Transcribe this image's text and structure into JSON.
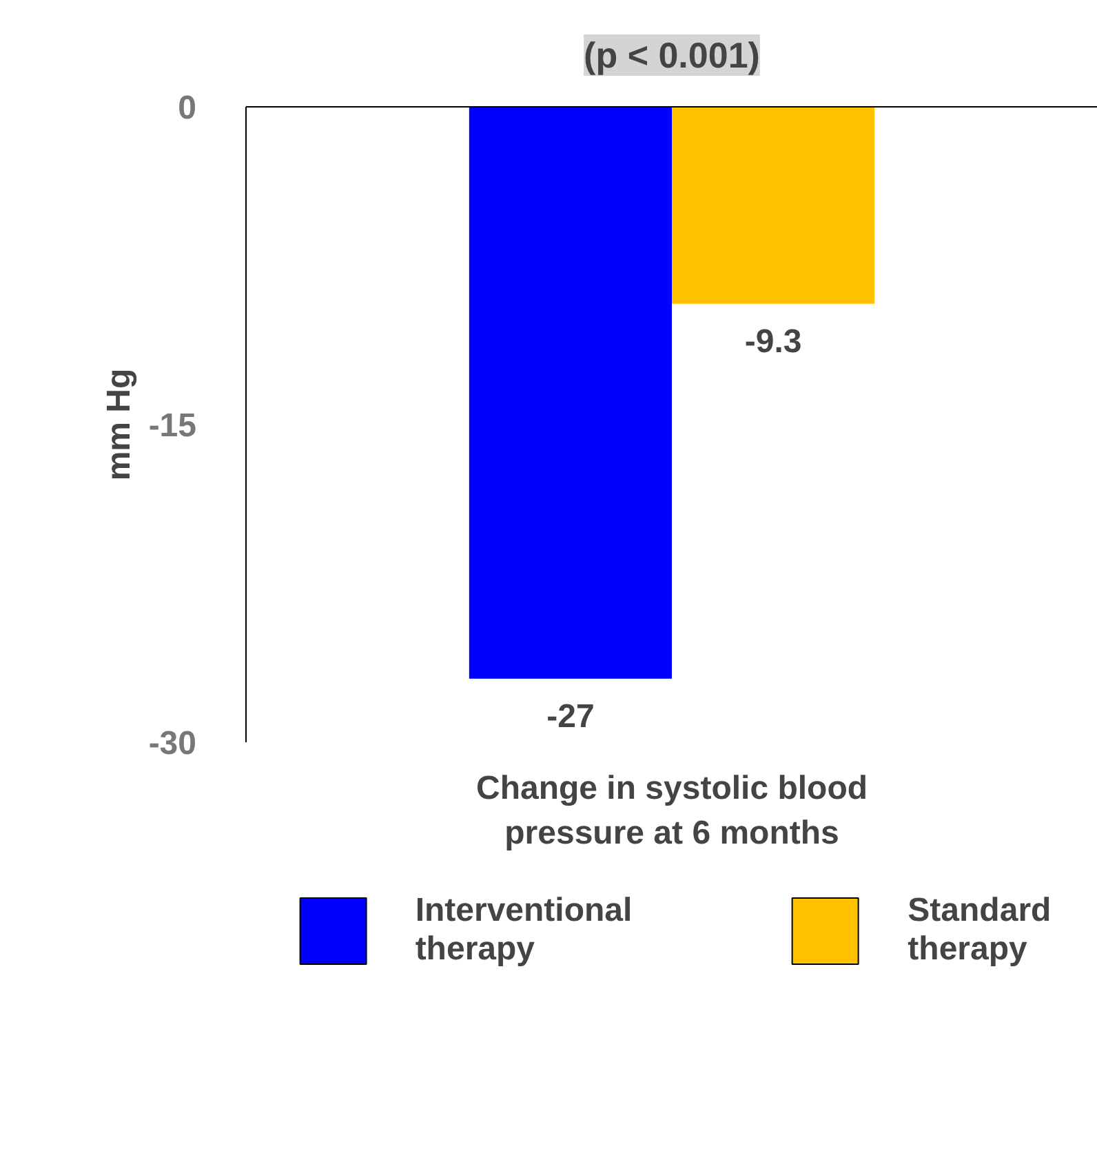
{
  "chart_data": {
    "type": "bar",
    "categories": [
      null
    ],
    "xlabel": "Change in systolic blood pressure at 6 months",
    "ylabel": "mm Hg",
    "series": [
      {
        "name": "Interventional therapy",
        "color": "#0000ff",
        "values": [
          -27
        ]
      },
      {
        "name": "Standard therapy",
        "color": "#ffc000",
        "values": [
          -9.3
        ]
      }
    ],
    "ylim": [
      -30,
      0
    ],
    "yticks": [
      -30,
      -15,
      0
    ],
    "data_labels": true,
    "grid": false,
    "legend": "bottom",
    "annotations": [
      "(p < 0.001)"
    ]
  }
}
